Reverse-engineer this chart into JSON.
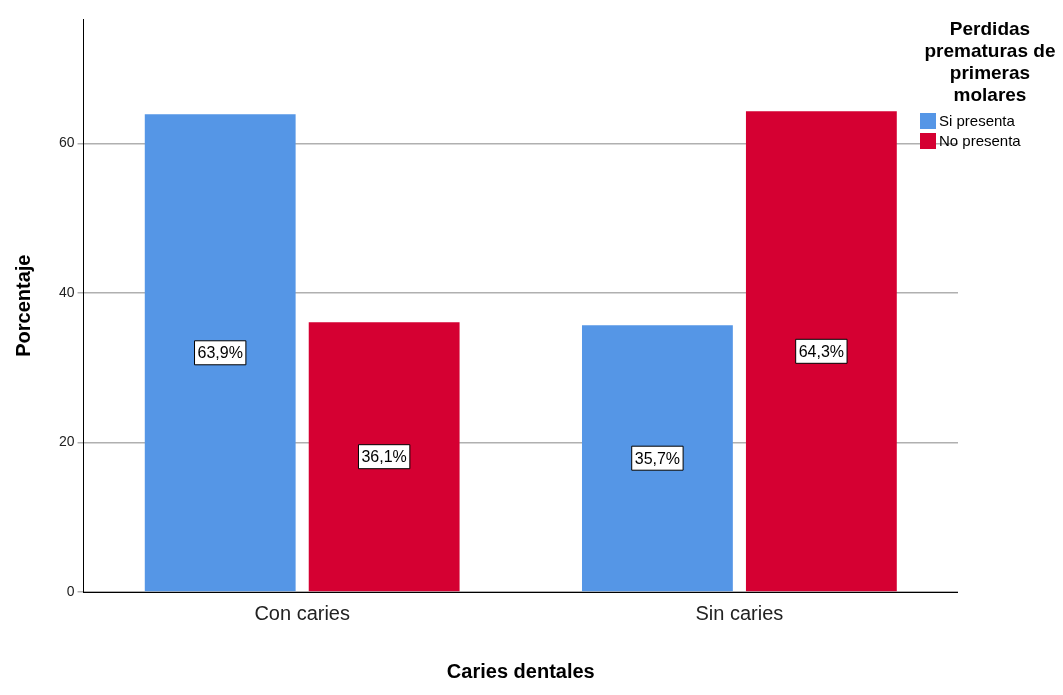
{
  "chart_data": {
    "type": "bar",
    "xlabel": "Caries dentales",
    "ylabel": "Porcentaje",
    "legend_title": "Perdidas prematuras de primeras molares",
    "categories": [
      "Con caries",
      "Sin caries"
    ],
    "series": [
      {
        "name": "Si presenta",
        "color": "#5596e6",
        "values": [
          63.9,
          35.7
        ],
        "value_labels": [
          "63,9%",
          "35,7%"
        ]
      },
      {
        "name": "No presenta",
        "color": "#d50032",
        "values": [
          36.1,
          64.3
        ],
        "value_labels": [
          "36,1%",
          "64,3%"
        ]
      }
    ],
    "ylim": [
      0,
      76.6
    ],
    "yticks": [
      0,
      20,
      40,
      60
    ],
    "grid": "y",
    "legend": "top right"
  }
}
